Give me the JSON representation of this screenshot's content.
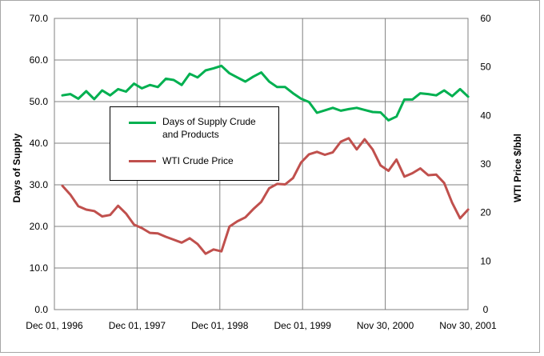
{
  "chart_data": {
    "type": "line",
    "x_tick_labels": [
      "Dec 01, 1996",
      "Dec 01, 1997",
      "Dec 01, 1998",
      "Dec 01, 1999",
      "Nov 30, 2000",
      "Nov 30, 2001"
    ],
    "left_axis": {
      "label": "Days  of Supply",
      "ylim": [
        0,
        70
      ],
      "ticks": [
        "0.0",
        "10.0",
        "20.0",
        "30.0",
        "40.0",
        "50.0",
        "60.0",
        "70.0"
      ]
    },
    "right_axis": {
      "label": "WTI Price $/bbl",
      "ylim": [
        0,
        60
      ],
      "ticks": [
        "0",
        "10",
        "20",
        "30",
        "40",
        "50",
        "60"
      ]
    },
    "grid": true,
    "legend_position": "center-left",
    "x_period_index_range": [
      0,
      260
    ],
    "series": [
      {
        "name": "Days of Supply Crude and Products",
        "axis": "left",
        "color": "#00b050",
        "x": [
          0,
          5,
          10,
          15,
          20,
          25,
          30,
          35,
          40,
          45,
          50,
          55,
          60,
          65,
          70,
          75,
          80,
          85,
          90,
          95,
          100,
          105,
          110,
          115,
          120,
          125,
          130,
          135,
          140,
          145,
          150,
          155,
          160,
          165,
          170,
          175,
          180,
          185,
          190,
          195,
          200,
          205,
          210,
          215,
          220,
          225,
          230,
          235,
          240,
          245,
          250,
          255
        ],
        "values": [
          51.5,
          51.8,
          50.7,
          52.5,
          50.6,
          52.7,
          51.5,
          53.0,
          52.4,
          54.3,
          53.2,
          54.0,
          53.5,
          55.5,
          55.2,
          54.0,
          56.7,
          55.8,
          57.5,
          58.0,
          58.6,
          56.8,
          55.8,
          54.8,
          56.0,
          57.0,
          54.8,
          53.5,
          53.5,
          52.0,
          50.7,
          49.9,
          47.3,
          47.9,
          48.5,
          47.8,
          48.2,
          48.5,
          48.0,
          47.5,
          47.4,
          45.5,
          46.4,
          50.5,
          50.5,
          52.0,
          51.8,
          51.5,
          52.7,
          51.3,
          53.0,
          51.2
        ]
      },
      {
        "name": "WTI Crude Price",
        "axis": "right",
        "color": "#c0504d",
        "x": [
          0,
          5,
          10,
          15,
          20,
          25,
          30,
          35,
          40,
          45,
          50,
          55,
          60,
          65,
          70,
          75,
          80,
          85,
          90,
          95,
          100,
          105,
          110,
          115,
          120,
          125,
          130,
          135,
          140,
          145,
          150,
          155,
          160,
          165,
          170,
          175,
          180,
          185,
          190,
          195,
          200,
          205,
          210,
          215,
          220,
          225,
          230,
          235,
          240,
          245,
          250,
          255
        ],
        "values": [
          25.5,
          23.7,
          21.3,
          20.6,
          20.3,
          19.2,
          19.5,
          21.4,
          19.8,
          17.5,
          16.8,
          15.8,
          15.7,
          15.0,
          14.4,
          13.8,
          14.7,
          13.5,
          11.5,
          12.4,
          12.0,
          17.1,
          18.2,
          19.0,
          20.7,
          22.2,
          25.0,
          25.9,
          25.8,
          27.1,
          30.3,
          32.0,
          32.5,
          31.9,
          32.4,
          34.6,
          35.3,
          33.0,
          35.1,
          33.0,
          29.7,
          28.6,
          30.9,
          27.4,
          28.1,
          29.1,
          27.7,
          27.8,
          26.1,
          22.0,
          18.8,
          20.6
        ]
      }
    ]
  }
}
